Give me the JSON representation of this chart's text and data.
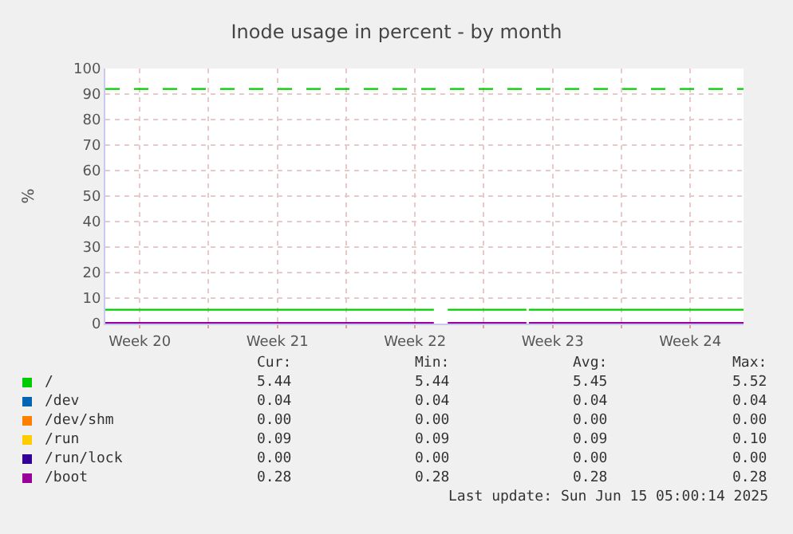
{
  "chart_data": {
    "type": "line",
    "title": "Inode usage in percent - by month",
    "ylabel": "%",
    "x": [
      "2025-05-13T18:00",
      "2025-05-30T11:00",
      "2025-05-30T19:00",
      "2025-05-31T04:00",
      "2025-06-04T04:00",
      "2025-06-04T05:00",
      "2025-06-04T07:00",
      "2025-06-15T05:00"
    ],
    "series": [
      {
        "name": "/",
        "color": "#00cc00",
        "values": [
          5.44,
          5.44,
          null,
          5.44,
          5.44,
          null,
          5.44,
          5.44
        ]
      },
      {
        "name": "/dev",
        "color": "#0066b3",
        "values": [
          null,
          null,
          null,
          null,
          null,
          null,
          null,
          null
        ]
      },
      {
        "name": "/dev/shm",
        "color": "#ff8000",
        "values": [
          null,
          null,
          null,
          null,
          null,
          null,
          null,
          null
        ]
      },
      {
        "name": "/run",
        "color": "#ffcc00",
        "values": [
          null,
          null,
          null,
          null,
          null,
          null,
          null,
          null
        ]
      },
      {
        "name": "/run/lock",
        "color": "#330099",
        "values": [
          null,
          null,
          null,
          null,
          null,
          null,
          null,
          null
        ]
      },
      {
        "name": "/boot",
        "color": "#990099",
        "values": [
          0.28,
          0.28,
          null,
          0.28,
          0.28,
          null,
          0.28,
          0.28
        ]
      }
    ],
    "xlim": [
      "2025-05-13T18:00",
      "2025-06-15T05:00"
    ],
    "xticks": [
      {
        "value": "2025-05-15T12:00",
        "label": "Week 20"
      },
      {
        "value": "2025-05-22T12:00",
        "label": "Week 21"
      },
      {
        "value": "2025-05-29T12:00",
        "label": "Week 22"
      },
      {
        "value": "2025-06-05T12:00",
        "label": "Week 23"
      },
      {
        "value": "2025-06-12T12:00",
        "label": "Week 24"
      },
      {
        "value": "2025-05-19",
        "label": null
      },
      {
        "value": "2025-05-26",
        "label": null
      },
      {
        "value": "2025-06-02",
        "label": null
      },
      {
        "value": "2025-06-09",
        "label": null
      }
    ],
    "ylim": [
      0,
      100
    ],
    "yticks": [
      0,
      10,
      20,
      30,
      40,
      50,
      60,
      70,
      80,
      90,
      100
    ],
    "grid": true,
    "legend": "bottom",
    "marker": "none",
    "line_style": "solid",
    "ref_lines": [
      {
        "axis": "y",
        "value": 92,
        "label": null,
        "color": "#00cc00",
        "line_style": "dashed"
      }
    ],
    "annotations": [
      "Cur:",
      "Min:",
      "Avg:",
      "Max:",
      "5.44",
      "5.44",
      "5.45",
      "5.52",
      "0.04",
      "0.04",
      "0.04",
      "0.04",
      "0.00",
      "0.00",
      "0.00",
      "0.00",
      "0.09",
      "0.09",
      "0.09",
      "0.10",
      "0.00",
      "0.00",
      "0.00",
      "0.00",
      "0.28",
      "0.28",
      "0.28",
      "0.28",
      "Last update: Sun Jun 15 05:00:14 2025"
    ]
  }
}
